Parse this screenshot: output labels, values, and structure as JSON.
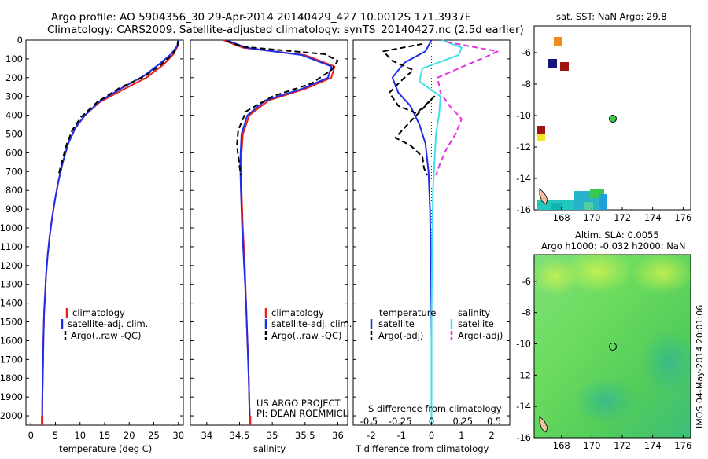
{
  "header": {
    "line1": "Argo profile: AO 5904356_30 29-Apr-2014 20140429_427 10.0012S 171.3937E",
    "line2": "Climatology: CARS2009. Satellite-adjusted climatology: synTS_20140427.nc (2.5d earlier)"
  },
  "footer_note": {
    "project": "US ARGO PROJECT",
    "pi": "PI: DEAN ROEMMICH"
  },
  "stamp": "IMOS 04-May-2014 20:01:06",
  "colors": {
    "climatology": "#e8211d",
    "satellite": "#1d2ee8",
    "argo": "#000000",
    "sat_salinity": "#3fe0e8",
    "argo_salinity": "#e633e6"
  },
  "chart_data": [
    {
      "id": "temperature",
      "type": "line",
      "xlabel": "temperature (deg C)",
      "xlim": [
        -1,
        31
      ],
      "xticks": [
        0,
        5,
        10,
        15,
        20,
        25,
        30
      ],
      "ylim": [
        2050,
        0
      ],
      "yticks": [
        0,
        100,
        200,
        300,
        400,
        500,
        600,
        700,
        800,
        900,
        1000,
        1100,
        1200,
        1300,
        1400,
        1500,
        1600,
        1700,
        1800,
        1900,
        2000
      ],
      "legend": [
        "climatology",
        "satellite-adj. clim.",
        "Argo(..raw -QC)"
      ],
      "series": [
        {
          "name": "climatology",
          "style": "climatology",
          "x": [
            30.0,
            29.9,
            29.0,
            27.0,
            23.5,
            19.0,
            14.0,
            11.0,
            9.0,
            7.6,
            6.5,
            5.6,
            4.9,
            4.3,
            3.8,
            3.4,
            3.1,
            2.9,
            2.7,
            2.55,
            2.45,
            2.35,
            2.3
          ],
          "y": [
            0,
            30,
            75,
            130,
            200,
            260,
            330,
            400,
            470,
            550,
            650,
            750,
            850,
            950,
            1050,
            1150,
            1250,
            1350,
            1450,
            1600,
            1750,
            1900,
            2050
          ]
        },
        {
          "name": "satellite-adj. clim.",
          "style": "satellite",
          "x": [
            30.0,
            29.8,
            28.5,
            26.0,
            23.0,
            18.5,
            14.0,
            11.0,
            9.0,
            7.6,
            6.5,
            5.6,
            4.9,
            4.3,
            3.8,
            3.4,
            3.1,
            2.9,
            2.7,
            2.55,
            2.45,
            2.35,
            2.3
          ],
          "y": [
            0,
            30,
            75,
            130,
            190,
            255,
            325,
            400,
            470,
            550,
            650,
            750,
            850,
            950,
            1050,
            1150,
            1250,
            1350,
            1450,
            1600,
            1750,
            1900,
            2050
          ]
        },
        {
          "name": "Argo(..raw -QC)",
          "style": "argo",
          "x": [
            29.9,
            29.8,
            28.8,
            26.5,
            23.0,
            18.0,
            13.5,
            10.2,
            8.4,
            7.2,
            6.3,
            5.6
          ],
          "y": [
            5,
            30,
            75,
            130,
            195,
            255,
            330,
            410,
            480,
            560,
            650,
            720
          ]
        }
      ]
    },
    {
      "id": "salinity",
      "type": "line",
      "xlabel": "salinity",
      "xlim": [
        33.75,
        36.15
      ],
      "xticks": [
        34,
        34.5,
        35,
        35.5,
        36
      ],
      "ylim": [
        2050,
        0
      ],
      "legend": [
        "climatology",
        "satellite-adj. clim.",
        "Argo(..raw -QC)"
      ],
      "series": [
        {
          "name": "climatology",
          "style": "climatology",
          "x": [
            34.25,
            34.55,
            35.5,
            35.95,
            35.9,
            35.5,
            34.95,
            34.65,
            34.55,
            34.52,
            34.53,
            34.55,
            34.58,
            34.6,
            34.62,
            34.64,
            34.65,
            34.66
          ],
          "y": [
            0,
            40,
            80,
            140,
            200,
            260,
            320,
            400,
            500,
            650,
            800,
            1000,
            1200,
            1400,
            1600,
            1800,
            1950,
            2050
          ]
        },
        {
          "name": "satellite-adj. clim.",
          "style": "satellite",
          "x": [
            34.3,
            34.6,
            35.45,
            35.9,
            35.85,
            35.45,
            34.9,
            34.62,
            34.53,
            34.51,
            34.52,
            34.54,
            34.57,
            34.6,
            34.62,
            34.64,
            34.65,
            34.66
          ],
          "y": [
            0,
            40,
            80,
            140,
            200,
            260,
            320,
            400,
            500,
            650,
            800,
            1000,
            1200,
            1400,
            1600,
            1800,
            1950,
            2050
          ]
        },
        {
          "name": "Argo(..raw -QC)",
          "style": "argo",
          "x": [
            34.3,
            34.55,
            35.8,
            36.0,
            35.9,
            35.6,
            35.0,
            34.6,
            34.48,
            34.46,
            34.49,
            34.52
          ],
          "y": [
            5,
            35,
            75,
            110,
            160,
            230,
            300,
            380,
            480,
            560,
            650,
            720
          ]
        }
      ]
    },
    {
      "id": "difference",
      "type": "line",
      "xlabel": "T difference from climatology",
      "xlabel_top": "S difference from climatology",
      "xlim": [
        -2.6,
        2.6
      ],
      "xticks": [
        -2,
        -1,
        0,
        1,
        2
      ],
      "xticks_top": [
        -0.5,
        -0.25,
        0,
        0.25,
        0.5
      ],
      "ylim": [
        2050,
        0
      ],
      "legend_temperature": {
        "title": "temperature",
        "items": [
          "satellite",
          "Argo(-adj)"
        ]
      },
      "legend_salinity": {
        "title": "salinity",
        "items": [
          "satellite",
          "Argo(-adj)"
        ]
      },
      "series": [
        {
          "name": "satellite",
          "group": "temperature",
          "style": "satellite",
          "x": [
            0,
            -0.2,
            -0.9,
            -1.3,
            -1.1,
            -0.7,
            -0.4,
            -0.2,
            -0.1,
            -0.05,
            -0.02,
            0,
            0
          ],
          "y": [
            0,
            60,
            120,
            200,
            280,
            350,
            450,
            550,
            700,
            900,
            1200,
            1600,
            2050
          ]
        },
        {
          "name": "Argo(-adj)",
          "group": "temperature",
          "style": "argo",
          "x": [
            -0.3,
            -1.6,
            -1.3,
            -0.6,
            -0.9,
            -1.4,
            -1.1,
            -0.5,
            0.1,
            -0.8,
            -1.2,
            -0.7,
            -0.3,
            -0.25,
            -0.15
          ],
          "y": [
            20,
            60,
            110,
            160,
            200,
            280,
            350,
            390,
            300,
            450,
            520,
            560,
            620,
            680,
            720
          ]
        },
        {
          "name": "satellite",
          "group": "salinity",
          "style": "sat_salinity",
          "x": [
            0.35,
            1.0,
            0.9,
            -0.3,
            -0.4,
            0.3,
            0.25,
            0.15,
            0.1,
            0.05,
            0.02,
            0,
            0
          ],
          "y": [
            0,
            40,
            80,
            150,
            220,
            300,
            400,
            500,
            650,
            800,
            1100,
            1500,
            2050
          ]
        },
        {
          "name": "Argo(-adj)",
          "group": "salinity",
          "style": "argo_salinity",
          "x": [
            0.5,
            2.2,
            1.8,
            1.2,
            0.2,
            0.3,
            0.6,
            1.0,
            0.8,
            0.5,
            0.3,
            0.15
          ],
          "y": [
            10,
            60,
            90,
            130,
            200,
            280,
            350,
            420,
            500,
            580,
            650,
            720
          ]
        }
      ]
    },
    {
      "id": "sst_map",
      "type": "heatmap",
      "title": "sat. SST: NaN Argo: 29.8",
      "xticks": [
        168,
        170,
        172,
        174,
        176
      ],
      "yticks": [
        -6,
        -8,
        -10,
        -12,
        -14,
        -16
      ],
      "xlim": [
        166.2,
        176.5
      ],
      "ylim": [
        -16,
        -4.3
      ],
      "marker": {
        "lon": 171.3937,
        "lat": -10.0012
      }
    },
    {
      "id": "sla_map",
      "type": "heatmap",
      "title": "Altim. SLA: 0.0055",
      "subtitle": "Argo h1000: -0.032 h2000: NaN",
      "xticks": [
        168,
        170,
        172,
        174,
        176
      ],
      "yticks": [
        -6,
        -8,
        -10,
        -12,
        -14,
        -16
      ],
      "xlim": [
        166.2,
        176.5
      ],
      "ylim": [
        -16,
        -4.3
      ],
      "marker": {
        "lon": 171.3937,
        "lat": -10.0012
      }
    }
  ]
}
